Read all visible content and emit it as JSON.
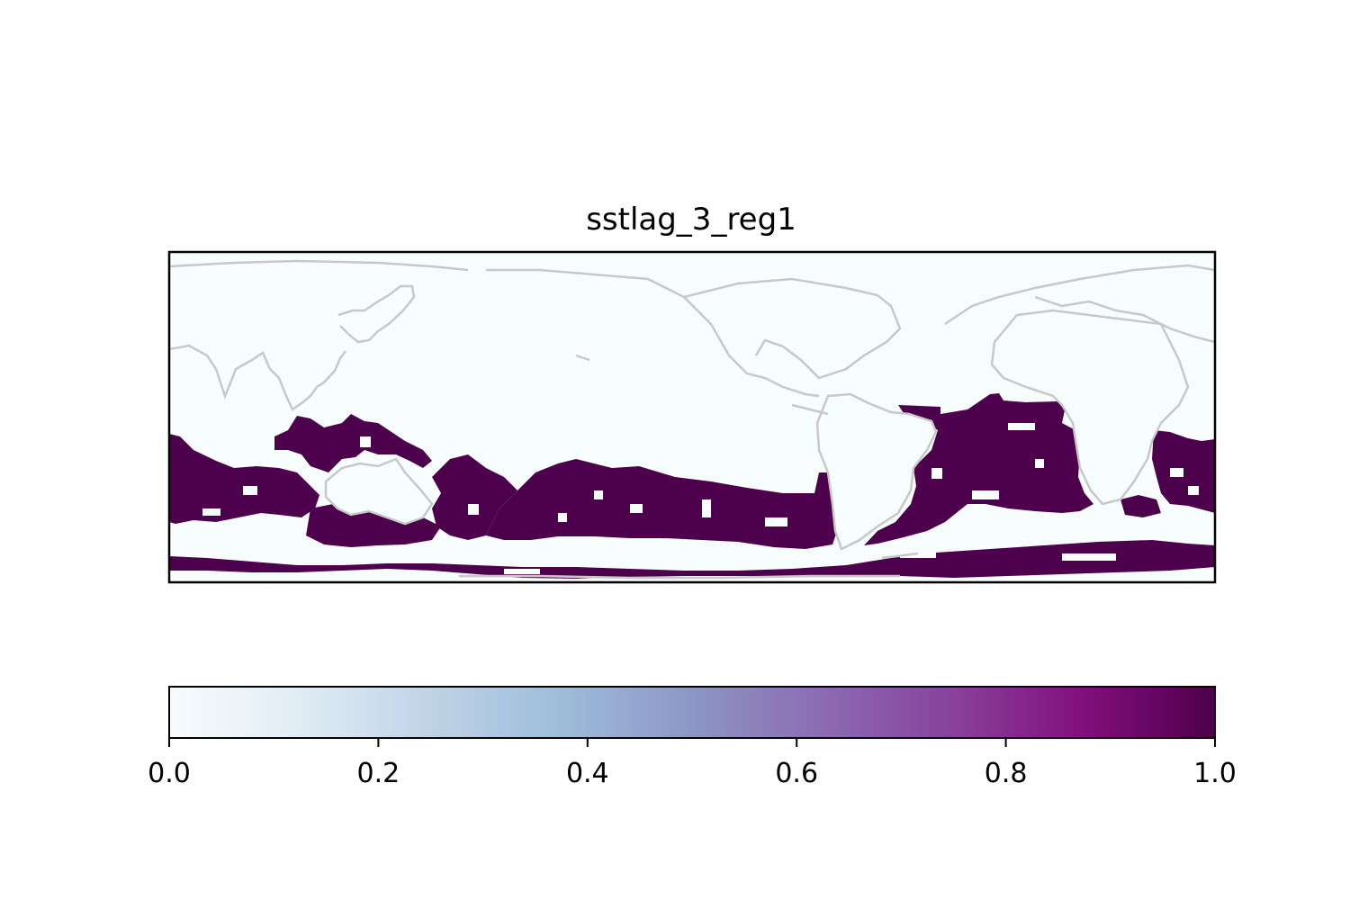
{
  "title": "sstlag_3_reg1",
  "colormap": {
    "name": "BuPu",
    "stops": [
      "#f7fcfd",
      "#e0ecf4",
      "#bfd3e6",
      "#9ebcda",
      "#8c96c6",
      "#8c6bb1",
      "#88419d",
      "#810f7c",
      "#4d004b"
    ],
    "low_color": "#f7fcfd",
    "high_color": "#4d004b"
  },
  "coastline_color": "#c8c8c8",
  "colorbar": {
    "min": 0.0,
    "max": 1.0,
    "ticks": [
      {
        "value": 0.0,
        "label": "0.0"
      },
      {
        "value": 0.2,
        "label": "0.2"
      },
      {
        "value": 0.4,
        "label": "0.4"
      },
      {
        "value": 0.6,
        "label": "0.6"
      },
      {
        "value": 0.8,
        "label": "0.8"
      },
      {
        "value": 1.0,
        "label": "1.0"
      }
    ]
  },
  "map_data": {
    "projection": "PlateCarree",
    "central_longitude": 180,
    "extent": {
      "lon": [
        0,
        360
      ],
      "lat": [
        -80,
        80
      ]
    },
    "value_in_regions": 1,
    "value_elsewhere": 0,
    "regions": [
      {
        "name": "south-atlantic",
        "value": 1
      },
      {
        "name": "southwest-indian",
        "value": 1
      },
      {
        "name": "south-indian-band",
        "value": 1
      },
      {
        "name": "south-pacific-band",
        "value": 1
      },
      {
        "name": "indonesian-seas",
        "value": 1
      },
      {
        "name": "southern-ocean-band",
        "value": 1
      }
    ]
  }
}
